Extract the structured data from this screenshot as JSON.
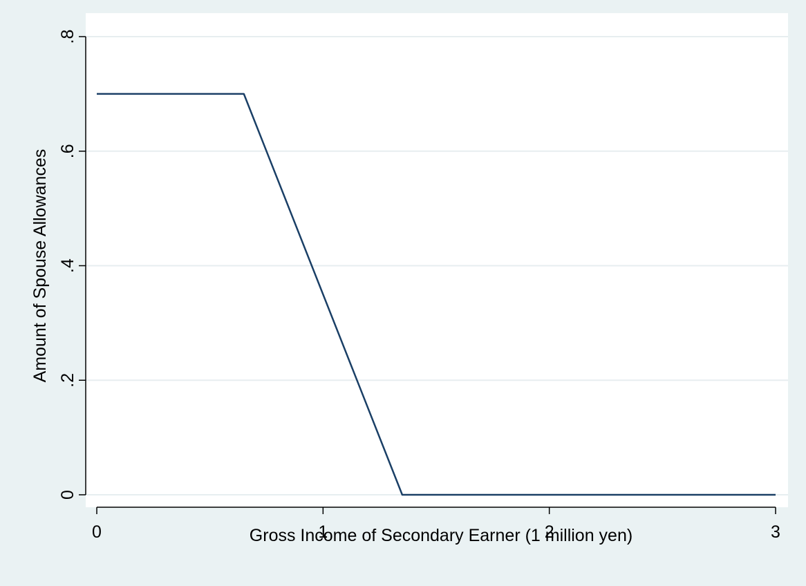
{
  "chart_data": {
    "type": "line",
    "title": "",
    "xlabel": "Gross Income of Secondary Earner (1 million yen)",
    "ylabel": "Amount of Spouse Allowances",
    "xlim": [
      0,
      3
    ],
    "ylim": [
      0,
      0.8
    ],
    "x_ticks": [
      {
        "value": 0,
        "label": "0"
      },
      {
        "value": 1,
        "label": "1"
      },
      {
        "value": 2,
        "label": "2"
      },
      {
        "value": 3,
        "label": "3"
      }
    ],
    "y_ticks": [
      {
        "value": 0,
        "label": "0"
      },
      {
        "value": 0.2,
        "label": ".2"
      },
      {
        "value": 0.4,
        "label": ".4"
      },
      {
        "value": 0.6,
        "label": ".6"
      },
      {
        "value": 0.8,
        "label": ".8"
      }
    ],
    "grid": "horizontal",
    "series": [
      {
        "color": "#1a3f66",
        "x": [
          0,
          0.65,
          1.35,
          3
        ],
        "y": [
          0.7,
          0.7,
          0,
          0
        ]
      }
    ]
  },
  "colors": {
    "background": "#eaf2f3",
    "plot_background": "#ffffff",
    "grid": "#e7eef0",
    "axis": "#000000",
    "line": "#1a3f66"
  }
}
